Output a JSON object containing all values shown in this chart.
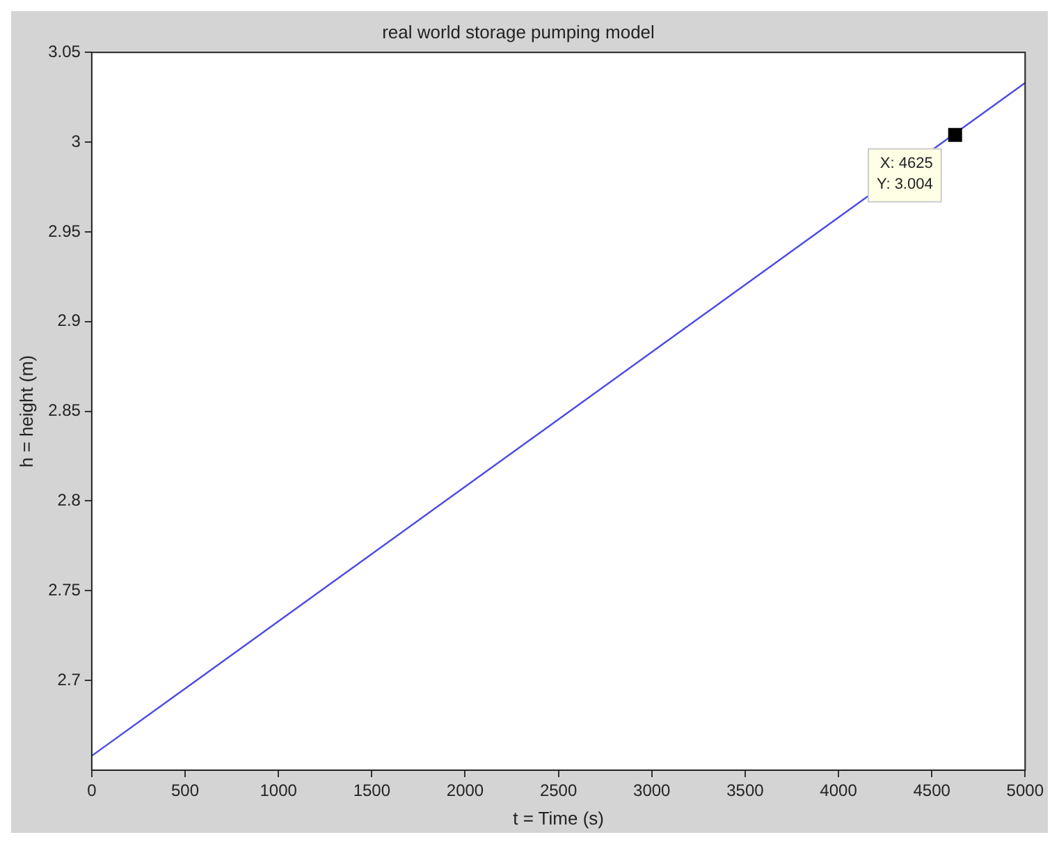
{
  "chart_data": {
    "type": "line",
    "title": "real world storage pumping model",
    "xlabel": "t = Time (s)",
    "ylabel": "h = height (m)",
    "x": [
      0,
      5000
    ],
    "series": [
      {
        "color": "#4a4ae6",
        "values": [
          2.658,
          3.033
        ]
      }
    ],
    "xlim": [
      0,
      5000
    ],
    "xticks": [
      0,
      500,
      1000,
      1500,
      2000,
      2500,
      3000,
      3500,
      4000,
      4500,
      5000
    ],
    "ylim": [
      2.65,
      3.05
    ],
    "yticks": [
      2.7,
      2.75,
      2.8,
      2.85,
      2.9,
      2.95,
      3,
      3.05
    ],
    "grid": false,
    "legend": false,
    "marker": "none",
    "line_style": "solid",
    "annotations": [
      {
        "text": "X: 4625\nY: 3.004",
        "x": 4625,
        "y": 3.004
      }
    ]
  }
}
